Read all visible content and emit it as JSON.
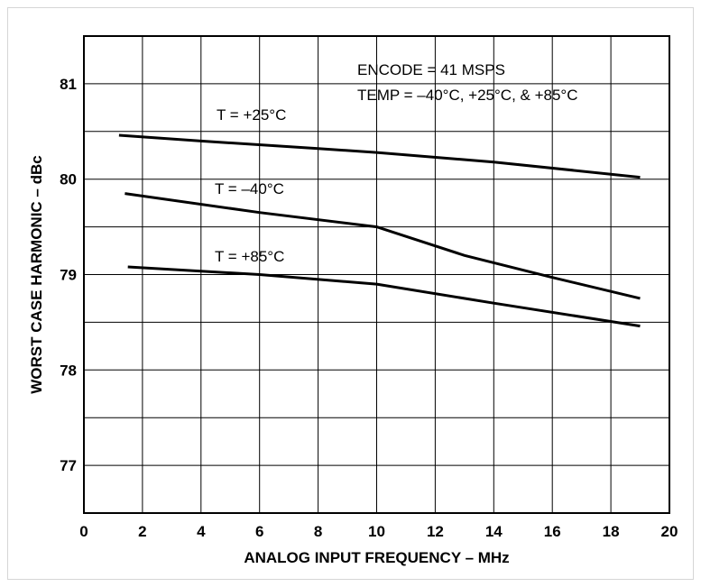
{
  "chart_data": {
    "type": "line",
    "title": "",
    "xlabel": "ANALOG INPUT FREQUENCY – MHz",
    "ylabel": "WORST CASE HARMONIC – dBc",
    "xlim": [
      0,
      20
    ],
    "ylim": [
      76.5,
      81.5
    ],
    "x_ticks": [
      0,
      2,
      4,
      6,
      8,
      10,
      12,
      14,
      16,
      18,
      20
    ],
    "y_ticks": [
      77,
      78,
      79,
      80,
      81
    ],
    "grid": true,
    "annotations": [
      "ENCODE = 41 MSPS",
      "TEMP = –40°C, +25°C, & +85°C"
    ],
    "series": [
      {
        "name": "T = +25°C",
        "x": [
          1.2,
          4,
          8,
          10,
          14,
          19
        ],
        "y": [
          80.46,
          80.4,
          80.32,
          80.28,
          80.18,
          80.02
        ]
      },
      {
        "name": "T = –40°C",
        "x": [
          1.4,
          6,
          10,
          13,
          16,
          19
        ],
        "y": [
          79.85,
          79.65,
          79.5,
          79.2,
          78.97,
          78.75
        ]
      },
      {
        "name": "T = +85°C",
        "x": [
          1.5,
          6,
          10,
          14,
          19
        ],
        "y": [
          79.08,
          79.0,
          78.9,
          78.7,
          78.46
        ]
      }
    ]
  }
}
